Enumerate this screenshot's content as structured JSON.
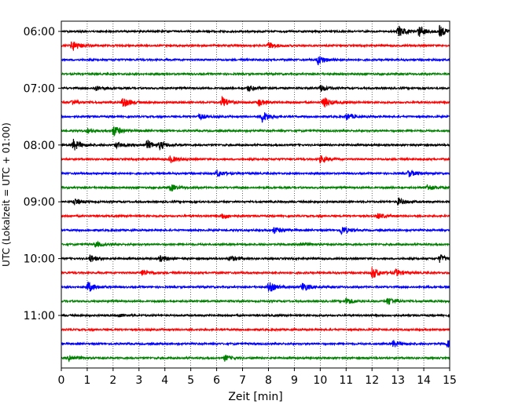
{
  "chart_data": {
    "type": "line",
    "title": "",
    "xlabel": "Zeit  [min]",
    "ylabel": "UTC (Lokalzeit = UTC + 01:00)",
    "xlim": [
      0,
      15
    ],
    "x_ticks": [
      0,
      1,
      2,
      3,
      4,
      5,
      6,
      7,
      8,
      9,
      10,
      11,
      12,
      13,
      14,
      15
    ],
    "y_tick_labels": [
      "06:00",
      "07:00",
      "08:00",
      "09:00",
      "10:00",
      "11:00"
    ],
    "x_grid": "dotted",
    "rows_per_label": 4,
    "color_cycle": [
      "#000000",
      "#ff0000",
      "#0000ff",
      "#008000"
    ],
    "traces": [
      {
        "start": "06:00",
        "events": [
          [
            13.0,
            1.0
          ],
          [
            13.8,
            0.9
          ],
          [
            14.6,
            0.9
          ]
        ]
      },
      {
        "start": "06:15",
        "events": [
          [
            0.4,
            1.0
          ],
          [
            8.0,
            0.6
          ]
        ]
      },
      {
        "start": "06:30",
        "events": [
          [
            9.9,
            0.9
          ]
        ]
      },
      {
        "start": "06:45",
        "events": []
      },
      {
        "start": "07:00",
        "events": [
          [
            1.3,
            0.4
          ],
          [
            7.2,
            0.5
          ],
          [
            10.0,
            0.6
          ]
        ]
      },
      {
        "start": "07:15",
        "events": [
          [
            0.4,
            0.5
          ],
          [
            2.35,
            1.0
          ],
          [
            6.2,
            1.0
          ],
          [
            7.6,
            0.6
          ],
          [
            10.1,
            1.0
          ]
        ]
      },
      {
        "start": "07:30",
        "events": [
          [
            5.3,
            0.5
          ],
          [
            7.75,
            1.0
          ],
          [
            11.0,
            0.6
          ]
        ]
      },
      {
        "start": "07:45",
        "events": [
          [
            1.0,
            0.4
          ],
          [
            2.0,
            1.0
          ]
        ]
      },
      {
        "start": "08:00",
        "events": [
          [
            0.45,
            1.0
          ],
          [
            2.1,
            0.5
          ],
          [
            3.3,
            0.8
          ],
          [
            3.8,
            0.6
          ]
        ]
      },
      {
        "start": "08:15",
        "events": [
          [
            4.2,
            0.6
          ],
          [
            10.0,
            0.6
          ]
        ]
      },
      {
        "start": "08:30",
        "events": [
          [
            6.0,
            0.6
          ],
          [
            13.4,
            0.6
          ]
        ]
      },
      {
        "start": "08:45",
        "events": [
          [
            4.2,
            0.6
          ],
          [
            14.1,
            0.6
          ]
        ]
      },
      {
        "start": "09:00",
        "events": [
          [
            0.5,
            0.6
          ],
          [
            13.0,
            0.6
          ]
        ]
      },
      {
        "start": "09:15",
        "events": [
          [
            6.2,
            0.5
          ],
          [
            12.2,
            0.5
          ]
        ]
      },
      {
        "start": "09:30",
        "events": [
          [
            8.2,
            0.6
          ],
          [
            10.8,
            0.8
          ]
        ]
      },
      {
        "start": "09:45",
        "events": [
          [
            1.3,
            0.5
          ],
          [
            9.2,
            0.4
          ]
        ]
      },
      {
        "start": "10:00",
        "events": [
          [
            1.1,
            0.6
          ],
          [
            3.8,
            0.5
          ],
          [
            6.5,
            0.5
          ],
          [
            14.6,
            0.7
          ]
        ]
      },
      {
        "start": "10:15",
        "events": [
          [
            3.1,
            0.6
          ],
          [
            12.0,
            1.0
          ],
          [
            12.9,
            0.6
          ]
        ]
      },
      {
        "start": "10:30",
        "events": [
          [
            1.0,
            1.0
          ],
          [
            8.0,
            0.9
          ],
          [
            9.3,
            0.8
          ]
        ]
      },
      {
        "start": "10:45",
        "events": [
          [
            11.0,
            0.6
          ],
          [
            12.6,
            0.7
          ]
        ]
      },
      {
        "start": "11:00",
        "events": [
          [
            2.2,
            0.3
          ]
        ]
      },
      {
        "start": "11:15",
        "events": []
      },
      {
        "start": "11:30",
        "events": [
          [
            12.8,
            0.6
          ],
          [
            14.9,
            0.6
          ]
        ]
      },
      {
        "start": "11:45",
        "events": [
          [
            0.3,
            0.6
          ],
          [
            6.3,
            0.5
          ]
        ]
      }
    ]
  }
}
